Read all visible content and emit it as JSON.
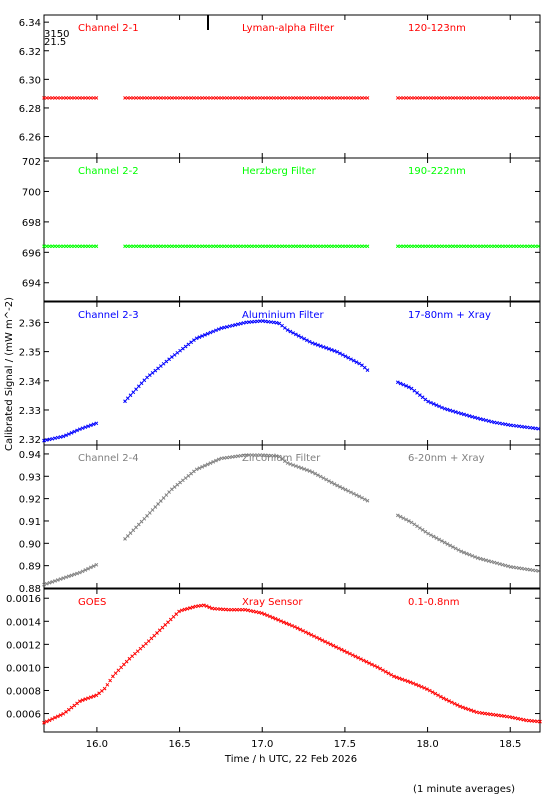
{
  "figure": {
    "xlabel": "Time / h UTC, 22 Feb 2026",
    "ylabel": "Calibrated Signal / (mW m^-2)",
    "footnote": "(1 minute averages)",
    "corner_labels": [
      "3150",
      "21.5"
    ],
    "xlim": [
      15.68,
      18.68
    ],
    "xticks": [
      "16.0",
      "16.5",
      "17.0",
      "17.5",
      "18.0",
      "18.5"
    ]
  },
  "chart_data": [
    {
      "type": "scatter",
      "channel": "Channel 2-1",
      "filter": "Lyman-alpha Filter",
      "band": "120-123nm",
      "color": "#ff0000",
      "ylim": [
        6.245,
        6.345
      ],
      "yticks": [
        "6.26",
        "6.28",
        "6.30",
        "6.32",
        "6.34"
      ],
      "segments": [
        {
          "start": 15.68,
          "end": 16.0,
          "points": [
            [
              15.68,
              6.287
            ],
            [
              16.0,
              6.287
            ]
          ]
        },
        {
          "start": 16.17,
          "end": 17.65,
          "points": [
            [
              16.17,
              6.287
            ],
            [
              17.65,
              6.287
            ]
          ]
        },
        {
          "start": 17.82,
          "end": 18.68,
          "points": [
            [
              17.82,
              6.287
            ],
            [
              18.68,
              6.287
            ]
          ]
        }
      ]
    },
    {
      "type": "scatter",
      "channel": "Channel 2-2",
      "filter": "Herzberg Filter",
      "band": "190-222nm",
      "color": "#00ff00",
      "ylim": [
        692.8,
        702.2
      ],
      "yticks": [
        "694",
        "696",
        "698",
        "700",
        "702"
      ],
      "segments": [
        {
          "start": 15.68,
          "end": 16.0,
          "points": [
            [
              15.68,
              696.4
            ],
            [
              16.0,
              696.4
            ]
          ]
        },
        {
          "start": 16.17,
          "end": 17.65,
          "points": [
            [
              16.17,
              696.4
            ],
            [
              17.65,
              696.4
            ]
          ]
        },
        {
          "start": 17.82,
          "end": 18.68,
          "points": [
            [
              17.82,
              696.4
            ],
            [
              18.68,
              696.4
            ]
          ]
        }
      ]
    },
    {
      "type": "scatter",
      "channel": "Channel 2-3",
      "filter": "Aluminium Filter",
      "band": "17-80nm + Xray",
      "color": "#0000ff",
      "ylim": [
        2.318,
        2.367
      ],
      "yticks": [
        "2.32",
        "2.33",
        "2.34",
        "2.35",
        "2.36"
      ],
      "segments": [
        {
          "start": 15.68,
          "end": 16.0,
          "points": [
            [
              15.68,
              2.3195
            ],
            [
              15.8,
              2.321
            ],
            [
              15.9,
              2.3235
            ],
            [
              16.0,
              2.3255
            ]
          ]
        },
        {
          "start": 16.17,
          "end": 17.65,
          "points": [
            [
              16.17,
              2.333
            ],
            [
              16.3,
              2.341
            ],
            [
              16.45,
              2.348
            ],
            [
              16.6,
              2.3545
            ],
            [
              16.75,
              2.358
            ],
            [
              16.9,
              2.36
            ],
            [
              17.0,
              2.3605
            ],
            [
              17.1,
              2.3598
            ],
            [
              17.15,
              2.3575
            ],
            [
              17.3,
              2.353
            ],
            [
              17.45,
              2.35
            ],
            [
              17.6,
              2.3455
            ],
            [
              17.65,
              2.343
            ]
          ]
        },
        {
          "start": 17.82,
          "end": 18.68,
          "points": [
            [
              17.82,
              2.3395
            ],
            [
              17.9,
              2.3375
            ],
            [
              18.0,
              2.333
            ],
            [
              18.1,
              2.3305
            ],
            [
              18.2,
              2.3288
            ],
            [
              18.3,
              2.3272
            ],
            [
              18.4,
              2.3258
            ],
            [
              18.5,
              2.3248
            ],
            [
              18.68,
              2.3235
            ]
          ]
        }
      ]
    },
    {
      "type": "scatter",
      "channel": "Channel 2-4",
      "filter": "Zirconium Filter",
      "band": "6-20nm + Xray",
      "color": "#808080",
      "ylim": [
        0.88,
        0.944
      ],
      "yticks": [
        "0.88",
        "0.89",
        "0.90",
        "0.91",
        "0.92",
        "0.93",
        "0.94"
      ],
      "segments": [
        {
          "start": 15.68,
          "end": 16.0,
          "points": [
            [
              15.68,
              0.8815
            ],
            [
              15.8,
              0.8845
            ],
            [
              15.9,
              0.887
            ],
            [
              16.0,
              0.8905
            ]
          ]
        },
        {
          "start": 16.17,
          "end": 17.65,
          "points": [
            [
              16.17,
              0.902
            ],
            [
              16.3,
              0.912
            ],
            [
              16.45,
              0.924
            ],
            [
              16.6,
              0.933
            ],
            [
              16.75,
              0.938
            ],
            [
              16.9,
              0.9395
            ],
            [
              17.0,
              0.9395
            ],
            [
              17.1,
              0.939
            ],
            [
              17.15,
              0.936
            ],
            [
              17.3,
              0.932
            ],
            [
              17.45,
              0.926
            ],
            [
              17.6,
              0.9205
            ],
            [
              17.65,
              0.9185
            ]
          ]
        },
        {
          "start": 17.82,
          "end": 18.68,
          "points": [
            [
              17.82,
              0.9125
            ],
            [
              17.9,
              0.9095
            ],
            [
              18.0,
              0.9045
            ],
            [
              18.1,
              0.9005
            ],
            [
              18.2,
              0.8965
            ],
            [
              18.3,
              0.8935
            ],
            [
              18.4,
              0.8915
            ],
            [
              18.5,
              0.8895
            ],
            [
              18.68,
              0.8875
            ]
          ]
        }
      ]
    },
    {
      "type": "scatter",
      "channel": "GOES",
      "filter": "Xray Sensor",
      "band": "0.1-0.8nm",
      "color": "#ff0000",
      "ylim": [
        0.00044,
        0.00168
      ],
      "yticks": [
        "0.0006",
        "0.0008",
        "0.0010",
        "0.0012",
        "0.0014",
        "0.0016"
      ],
      "segments": [
        {
          "start": 15.68,
          "end": 18.68,
          "points": [
            [
              15.68,
              0.00052
            ],
            [
              15.8,
              0.0006
            ],
            [
              15.9,
              0.00071
            ],
            [
              16.0,
              0.00076
            ],
            [
              16.05,
              0.00082
            ],
            [
              16.1,
              0.00093
            ],
            [
              16.2,
              0.00108
            ],
            [
              16.3,
              0.00121
            ],
            [
              16.4,
              0.00135
            ],
            [
              16.5,
              0.00149
            ],
            [
              16.6,
              0.00153
            ],
            [
              16.65,
              0.00154
            ],
            [
              16.7,
              0.00151
            ],
            [
              16.8,
              0.0015
            ],
            [
              16.9,
              0.0015
            ],
            [
              17.0,
              0.00147
            ],
            [
              17.1,
              0.00141
            ],
            [
              17.2,
              0.00135
            ],
            [
              17.3,
              0.00128
            ],
            [
              17.4,
              0.00121
            ],
            [
              17.5,
              0.00114
            ],
            [
              17.6,
              0.00107
            ],
            [
              17.7,
              0.001
            ],
            [
              17.8,
              0.00092
            ],
            [
              17.9,
              0.00087
            ],
            [
              18.0,
              0.00081
            ],
            [
              18.1,
              0.00073
            ],
            [
              18.2,
              0.00066
            ],
            [
              18.3,
              0.00061
            ],
            [
              18.4,
              0.00059
            ],
            [
              18.5,
              0.00057
            ],
            [
              18.6,
              0.00054
            ],
            [
              18.68,
              0.00053
            ]
          ]
        }
      ]
    }
  ]
}
